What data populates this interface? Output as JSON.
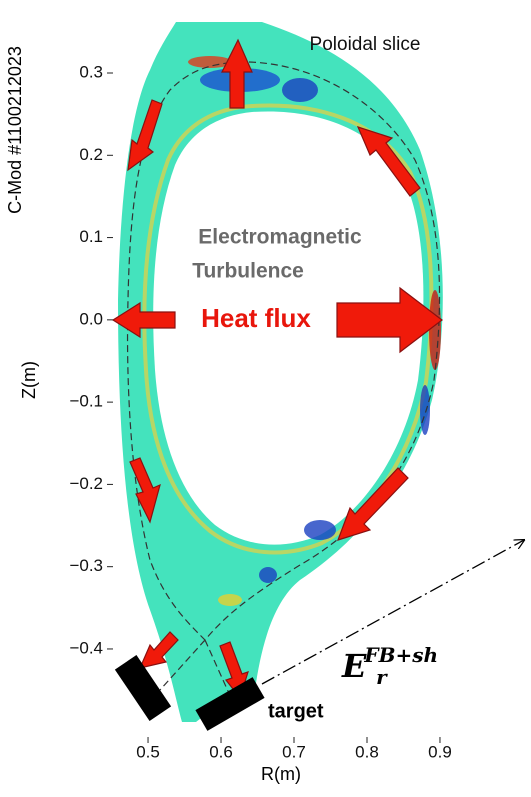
{
  "chart_data": {
    "type": "poloidal-field",
    "title": "Poloidal slice",
    "side_label": "C-Mod #1100212023",
    "xlabel": "R(m)",
    "ylabel": "Z(m)",
    "xlim": [
      0.452,
      0.911
    ],
    "ylim": [
      -0.507,
      0.362
    ],
    "xticks": [
      0.5,
      0.6,
      0.7,
      0.8,
      0.9
    ],
    "yticks": [
      0.3,
      0.2,
      0.1,
      {
        "value": 0,
        "label": "0.0"
      },
      {
        "value": -0.1,
        "label": "−0.1"
      },
      {
        "value": -0.2,
        "label": "−0.2"
      },
      {
        "value": -0.3,
        "label": "−0.3"
      },
      {
        "value": -0.4,
        "label": "−0.4"
      }
    ],
    "annotations": {
      "line1": "Electromagnetic",
      "line2": "Turbulence",
      "heat": "Heat flux",
      "target": "target",
      "er_symbol": "E",
      "er_sub": "r",
      "er_sup": "FB+sh"
    }
  }
}
